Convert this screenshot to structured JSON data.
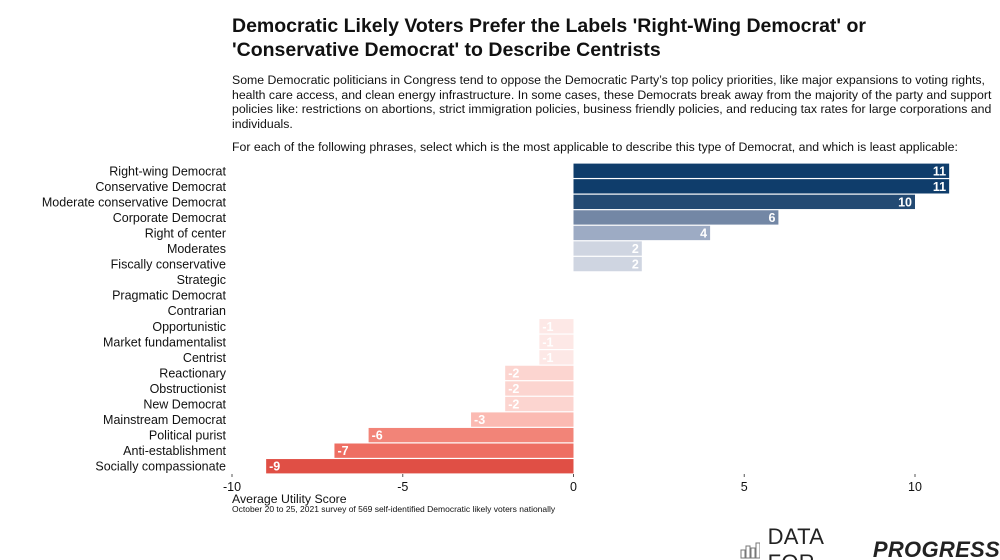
{
  "title": "Democratic Likely Voters Prefer the Labels 'Right-Wing Democrat' or 'Conservative Democrat' to Describe Centrists",
  "subtitle": "Some Democratic politicians in Congress tend to oppose the Democratic Party’s top policy priorities, like major expansions to voting rights, health care access, and clean energy infrastructure. In some cases, these Democrats break away from the majority of the party and support policies like: restrictions on abortions, strict immigration policies, business friendly policies, and reducing tax rates for large corporations and individuals.",
  "question": "For each of the following phrases, select which is the most applicable to describe this type of Democrat, and which is least applicable:",
  "source": "October 20 to 25, 2021 survey of 569 self-identified Democratic likely voters nationally",
  "logo": {
    "text_light": "DATA FOR",
    "text_bold": "PROGRESS",
    "icon": "bar-chart-icon"
  },
  "chart_data": {
    "type": "bar",
    "orientation": "horizontal",
    "xlabel": "Average Utility Score",
    "xlim": [
      -10,
      11
    ],
    "xticks": [
      -10,
      -5,
      0,
      5,
      10
    ],
    "grid": false,
    "categories": [
      "Right-wing Democrat",
      "Conservative Democrat",
      "Moderate conservative Democrat",
      "Corporate Democrat",
      "Right of center",
      "Moderates",
      "Fiscally conservative",
      "Strategic",
      "Pragmatic Democrat",
      "Contrarian",
      "Opportunistic",
      "Market fundamentalist",
      "Centrist",
      "Reactionary",
      "Obstructionist",
      "New Democrat",
      "Mainstream Democrat",
      "Political purist",
      "Anti-establishment",
      "Socially compassionate"
    ],
    "values": [
      11,
      11,
      10,
      6,
      4,
      2,
      2,
      0,
      0,
      0,
      -1,
      -1,
      -1,
      -2,
      -2,
      -2,
      -3,
      -6,
      -7,
      -9
    ],
    "colors": {
      "11": "#0f3d6b",
      "10": "#234a73",
      "6": "#7387a5",
      "4": "#9dabc4",
      "2": "#cfd5e1",
      "-1": "#fde8e6",
      "-2": "#fcd5d0",
      "-3": "#fbbab2",
      "-6": "#f28478",
      "-7": "#ee6e62",
      "-9": "#e04f45"
    }
  }
}
